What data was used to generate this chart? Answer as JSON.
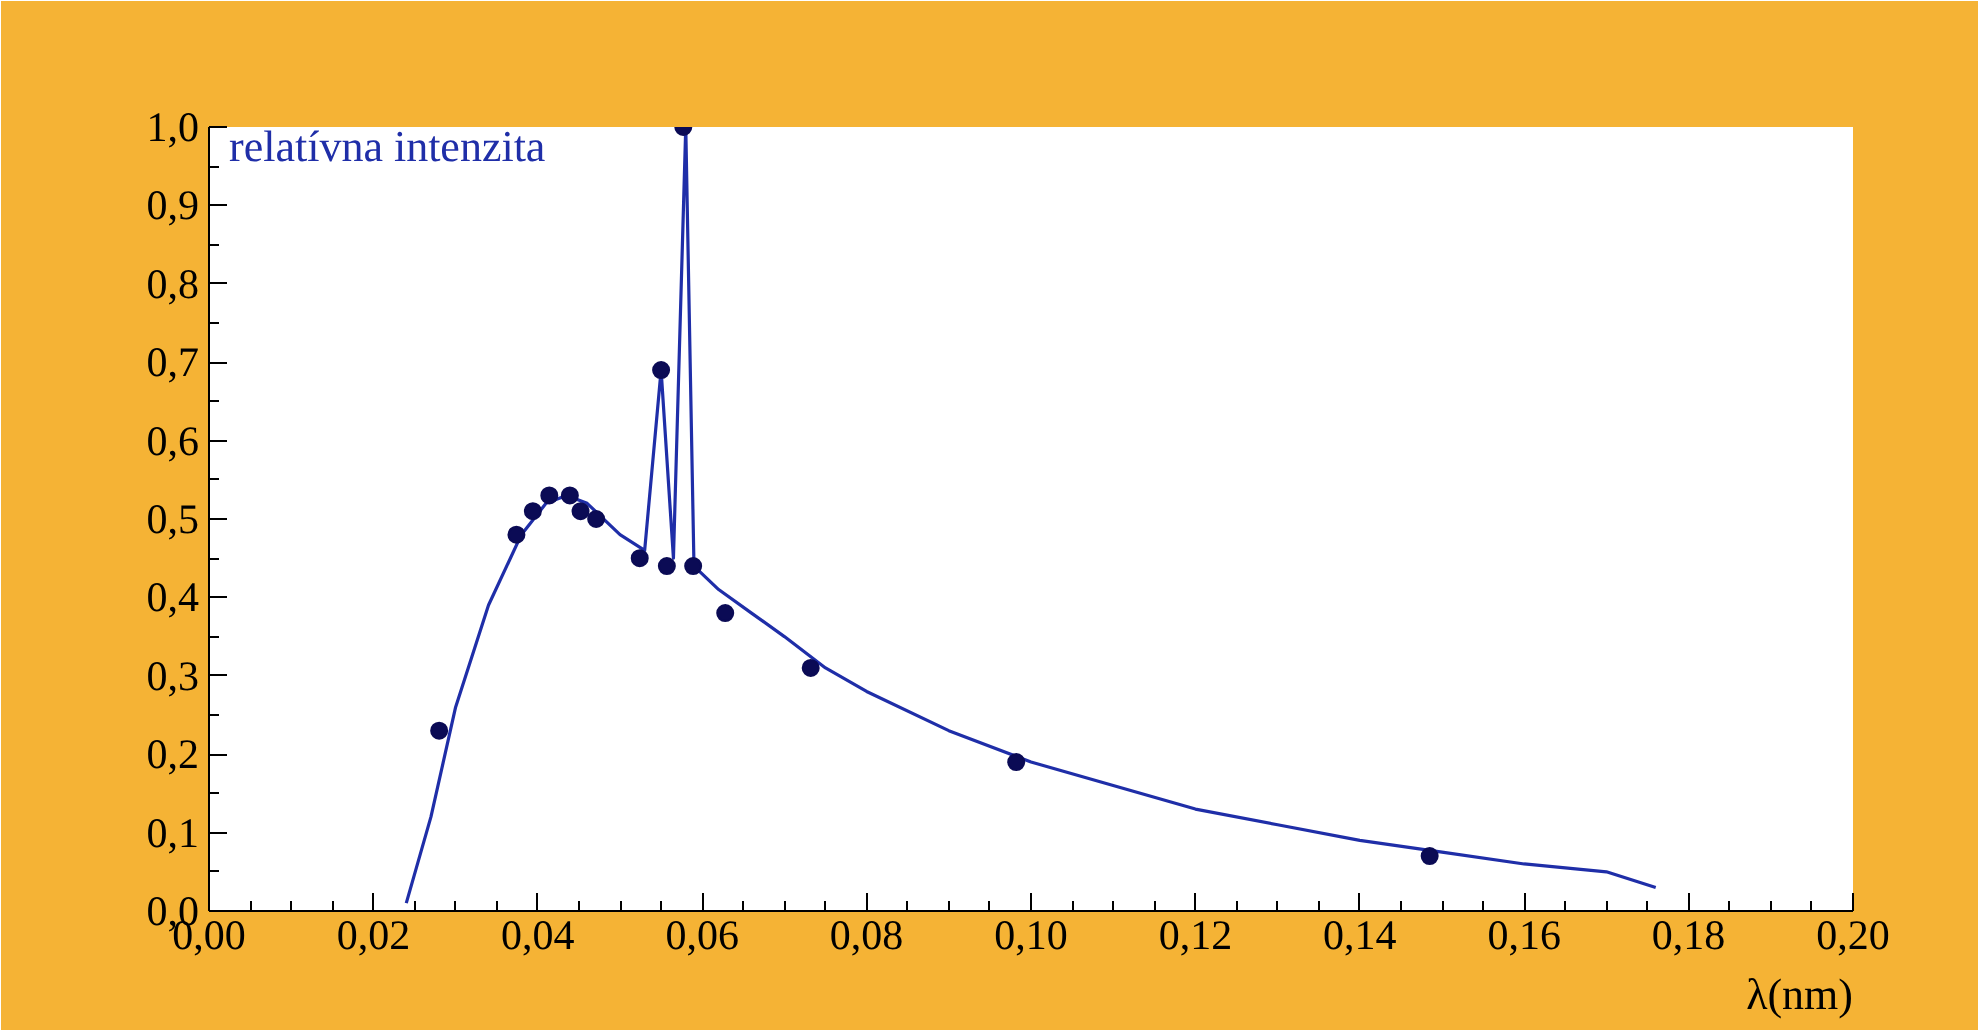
{
  "chart_data": {
    "type": "line",
    "ylabel": "relatívna intenzita",
    "xlabel": "λ(nm)",
    "xlim": [
      0,
      0.2
    ],
    "ylim": [
      0,
      1.0
    ],
    "xticks": [
      {
        "value": 0,
        "label": "0,00"
      },
      {
        "value": 0.02,
        "label": "0,02"
      },
      {
        "value": 0.04,
        "label": "0,04"
      },
      {
        "value": 0.06,
        "label": "0,06"
      },
      {
        "value": 0.08,
        "label": "0,08"
      },
      {
        "value": 0.1,
        "label": "0,10"
      },
      {
        "value": 0.12,
        "label": "0,12"
      },
      {
        "value": 0.14,
        "label": "0,14"
      },
      {
        "value": 0.16,
        "label": "0,16"
      },
      {
        "value": 0.18,
        "label": "0,18"
      },
      {
        "value": 0.2,
        "label": "0,20"
      }
    ],
    "yticks": [
      {
        "value": 0,
        "label": "0,0"
      },
      {
        "value": 0.1,
        "label": "0,1"
      },
      {
        "value": 0.2,
        "label": "0,2"
      },
      {
        "value": 0.3,
        "label": "0,3"
      },
      {
        "value": 0.4,
        "label": "0,4"
      },
      {
        "value": 0.5,
        "label": "0,5"
      },
      {
        "value": 0.6,
        "label": "0,6"
      },
      {
        "value": 0.7,
        "label": "0,7"
      },
      {
        "value": 0.8,
        "label": "0,8"
      },
      {
        "value": 0.9,
        "label": "0,9"
      },
      {
        "value": 1.0,
        "label": "1,0"
      }
    ],
    "grid": false,
    "line_style": "solid",
    "series": [
      {
        "color": "#1f2ea8",
        "marker": "none",
        "x": [
          0.024,
          0.027,
          0.03,
          0.034,
          0.038,
          0.041,
          0.0435,
          0.046,
          0.05,
          0.053,
          0.055,
          0.0565,
          0.058,
          0.059,
          0.062,
          0.066,
          0.07,
          0.075,
          0.08,
          0.09,
          0.1,
          0.11,
          0.12,
          0.13,
          0.14,
          0.15,
          0.16,
          0.17,
          0.176
        ],
        "values": [
          0.01,
          0.12,
          0.26,
          0.39,
          0.48,
          0.52,
          0.53,
          0.52,
          0.48,
          0.46,
          0.69,
          0.45,
          1.0,
          0.44,
          0.41,
          0.38,
          0.35,
          0.31,
          0.28,
          0.23,
          0.19,
          0.16,
          0.13,
          0.11,
          0.09,
          0.075,
          0.06,
          0.05,
          0.03
        ]
      },
      {
        "type": "scatter",
        "color": "#0b0b55",
        "marker": "circle",
        "x": [
          0.028,
          0.0374,
          0.0394,
          0.0414,
          0.0439,
          0.0452,
          0.0471,
          0.0524,
          0.055,
          0.0557,
          0.0577,
          0.0589,
          0.0628,
          0.0732,
          0.0982,
          0.1485
        ],
        "values": [
          0.23,
          0.48,
          0.51,
          0.53,
          0.53,
          0.51,
          0.5,
          0.45,
          0.69,
          0.44,
          1.0,
          0.44,
          0.38,
          0.31,
          0.19,
          0.07
        ]
      }
    ]
  }
}
